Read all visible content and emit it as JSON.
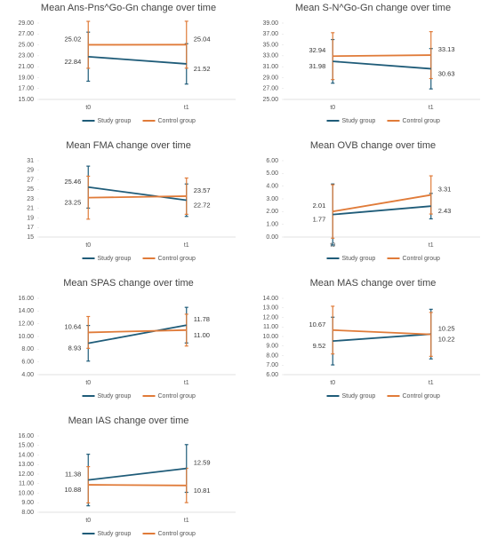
{
  "chart_data": [
    {
      "type": "line",
      "title": "Mean Ans-Pns^Go-Gn change over time",
      "categories": [
        "t0",
        "t1"
      ],
      "ylim": [
        15,
        29
      ],
      "yticks": [
        {
          "value": 15,
          "label": "15.00"
        },
        {
          "value": 17,
          "label": "17.00"
        },
        {
          "value": 19,
          "label": "19.00"
        },
        {
          "value": 21,
          "label": "21.00"
        },
        {
          "value": 23,
          "label": "23.00"
        },
        {
          "value": 25,
          "label": "25.00"
        },
        {
          "value": 27,
          "label": "27.00"
        },
        {
          "value": 29,
          "label": "29.00"
        }
      ],
      "series": [
        {
          "name": "Study group",
          "color": "#1f5c79",
          "values": [
            22.84,
            21.52
          ],
          "errors": [
            4.5,
            3.7
          ]
        },
        {
          "name": "Control group",
          "color": "#e07b39",
          "values": [
            25.02,
            25.04
          ],
          "errors": [
            4.3,
            4.3
          ]
        }
      ]
    },
    {
      "type": "line",
      "title": "Mean S-N^Go-Gn change over time",
      "categories": [
        "t0",
        "t1"
      ],
      "ylim": [
        25,
        39
      ],
      "yticks": [
        {
          "value": 25,
          "label": "25.00"
        },
        {
          "value": 27,
          "label": "27.00"
        },
        {
          "value": 29,
          "label": "29.00"
        },
        {
          "value": 31,
          "label": "31.00"
        },
        {
          "value": 33,
          "label": "33.00"
        },
        {
          "value": 35,
          "label": "35.00"
        },
        {
          "value": 37,
          "label": "37.00"
        },
        {
          "value": 39,
          "label": "39.00"
        }
      ],
      "series": [
        {
          "name": "Study group",
          "color": "#1f5c79",
          "values": [
            31.98,
            30.63
          ],
          "errors": [
            4.0,
            3.7
          ]
        },
        {
          "name": "Control group",
          "color": "#e07b39",
          "values": [
            32.94,
            33.13
          ],
          "errors": [
            4.3,
            4.3
          ]
        }
      ]
    },
    {
      "type": "line",
      "title": "Mean FMA change over time",
      "categories": [
        "t0",
        "t1"
      ],
      "ylim": [
        15,
        31
      ],
      "yticks": [
        15,
        17,
        19,
        21,
        23,
        25,
        27,
        29,
        31
      ],
      "series": [
        {
          "name": "Study group",
          "color": "#1f5c79",
          "values": [
            25.46,
            22.72
          ],
          "errors": [
            4.4,
            3.4
          ]
        },
        {
          "name": "Control group",
          "color": "#e07b39",
          "values": [
            23.25,
            23.57
          ],
          "errors": [
            4.5,
            3.8
          ]
        }
      ]
    },
    {
      "type": "line",
      "title": "Mean OVB change over time",
      "categories": [
        "t0",
        "t1"
      ],
      "ylim": [
        0,
        6
      ],
      "yticks": [
        {
          "value": 0,
          "label": "0.00"
        },
        {
          "value": 1,
          "label": "1.00"
        },
        {
          "value": 2,
          "label": "2.00"
        },
        {
          "value": 3,
          "label": "3.00"
        },
        {
          "value": 4,
          "label": "4.00"
        },
        {
          "value": 5,
          "label": "5.00"
        },
        {
          "value": 6,
          "label": "6.00"
        }
      ],
      "series": [
        {
          "name": "Study group",
          "color": "#1f5c79",
          "values": [
            1.77,
            2.43
          ],
          "errors": [
            2.4,
            1.0
          ]
        },
        {
          "name": "Control group",
          "color": "#e07b39",
          "values": [
            2.01,
            3.31
          ],
          "errors": [
            2.1,
            1.5
          ]
        }
      ]
    },
    {
      "type": "line",
      "title": "Mean SPAS change over time",
      "categories": [
        "t0",
        "t1"
      ],
      "ylim": [
        4,
        16
      ],
      "yticks": [
        {
          "value": 4,
          "label": "4.00"
        },
        {
          "value": 6,
          "label": "6.00"
        },
        {
          "value": 8,
          "label": "8.00"
        },
        {
          "value": 10,
          "label": "10.00"
        },
        {
          "value": 12,
          "label": "12.00"
        },
        {
          "value": 14,
          "label": "14.00"
        },
        {
          "value": 16,
          "label": "16.00"
        }
      ],
      "series": [
        {
          "name": "Study group",
          "color": "#1f5c79",
          "values": [
            8.93,
            11.78
          ],
          "errors": [
            2.8,
            2.8
          ]
        },
        {
          "name": "Control group",
          "color": "#e07b39",
          "values": [
            10.64,
            11.0
          ],
          "value_labels": [
            "10.64",
            "11.00"
          ],
          "errors": [
            2.5,
            2.5
          ]
        }
      ]
    },
    {
      "type": "line",
      "title": "Mean MAS change over time",
      "categories": [
        "t0",
        "t1"
      ],
      "ylim": [
        6,
        14
      ],
      "yticks": [
        {
          "value": 6,
          "label": "6.00"
        },
        {
          "value": 7,
          "label": "7.00"
        },
        {
          "value": 8,
          "label": "8.00"
        },
        {
          "value": 9,
          "label": "9.00"
        },
        {
          "value": 10,
          "label": "10.00"
        },
        {
          "value": 11,
          "label": "11.00"
        },
        {
          "value": 12,
          "label": "12.00"
        },
        {
          "value": 13,
          "label": "13.00"
        },
        {
          "value": 14,
          "label": "14.00"
        }
      ],
      "series": [
        {
          "name": "Study group",
          "color": "#1f5c79",
          "values": [
            9.52,
            10.25
          ],
          "errors": [
            2.5,
            2.6
          ]
        },
        {
          "name": "Control group",
          "color": "#e07b39",
          "values": [
            10.67,
            10.22
          ],
          "errors": [
            2.5,
            2.3
          ]
        }
      ]
    },
    {
      "type": "line",
      "title": "Mean IAS change over time",
      "categories": [
        "t0",
        "t1"
      ],
      "ylim": [
        8,
        16
      ],
      "yticks": [
        {
          "value": 8,
          "label": "8.00"
        },
        {
          "value": 9,
          "label": "9.00"
        },
        {
          "value": 10,
          "label": "10.00"
        },
        {
          "value": 11,
          "label": "11.00"
        },
        {
          "value": 12,
          "label": "12.00"
        },
        {
          "value": 13,
          "label": "13.00"
        },
        {
          "value": 14,
          "label": "14.00"
        },
        {
          "value": 15,
          "label": "15.00"
        },
        {
          "value": 16,
          "label": "16.00"
        }
      ],
      "series": [
        {
          "name": "Study group",
          "color": "#1f5c79",
          "values": [
            11.38,
            12.59
          ],
          "errors": [
            2.7,
            2.5
          ]
        },
        {
          "name": "Control group",
          "color": "#e07b39",
          "values": [
            10.88,
            10.81
          ],
          "errors": [
            1.9,
            1.8
          ]
        }
      ]
    }
  ]
}
